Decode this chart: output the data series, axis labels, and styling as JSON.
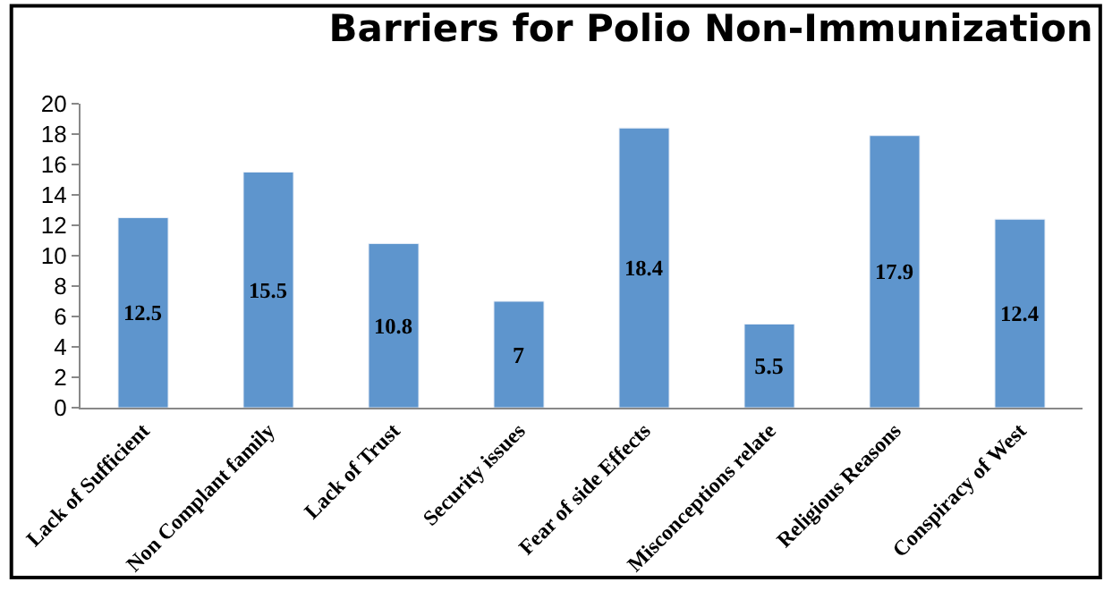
{
  "chart_data": {
    "type": "bar",
    "title": "Barriers for Polio Non-Immunization",
    "categories": [
      "Lack of Sufficient",
      "Non Complant family",
      "Lack of Trust",
      "Security issues",
      "Fear of side Effects",
      "Misconceptions relate",
      "Religious Reasons",
      "Conspiracy of West"
    ],
    "values": [
      12.5,
      15.5,
      10.8,
      7,
      18.4,
      5.5,
      17.9,
      12.4
    ],
    "color": "#5e95cd",
    "ylim": [
      0,
      20
    ],
    "yticks": [
      0,
      2,
      4,
      6,
      8,
      10,
      12,
      14,
      16,
      18,
      20
    ],
    "data_labels": true,
    "legend": false
  }
}
